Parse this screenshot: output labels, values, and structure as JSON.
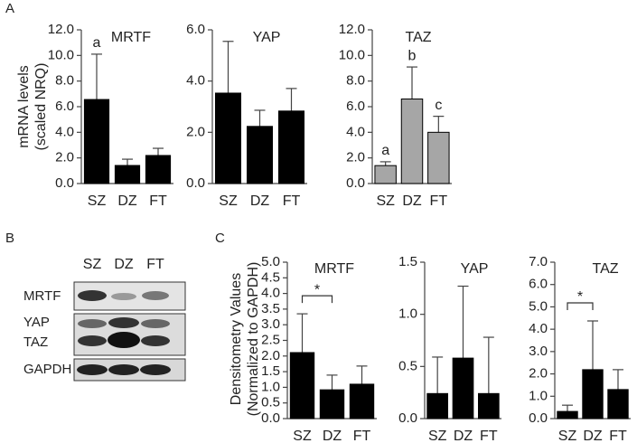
{
  "panels": [
    "A",
    "B",
    "C"
  ],
  "blot": {
    "lanes": [
      "SZ",
      "DZ",
      "FT"
    ],
    "rows": [
      "MRTF",
      "YAP",
      "TAZ",
      "GAPDH"
    ]
  },
  "chart_data": [
    {
      "type": "bar",
      "title": "MRTF",
      "ylabel": [
        "mRNA levels",
        "(scaled NRQ)"
      ],
      "categories": [
        "SZ",
        "DZ",
        "FT"
      ],
      "values": [
        6.56,
        1.41,
        2.19
      ],
      "errors": [
        3.54,
        0.49,
        0.56
      ],
      "annotations": [
        "a",
        null,
        null
      ],
      "color": "#000000",
      "ylim": [
        0,
        12
      ],
      "yticks": [
        {
          "value": 0,
          "label": "0.0"
        },
        {
          "value": 2,
          "label": "2.0"
        },
        {
          "value": 4,
          "label": "4.0"
        },
        {
          "value": 6,
          "label": "6.0"
        },
        {
          "value": 8,
          "label": "8.0"
        },
        {
          "value": 10,
          "label": "10.0"
        },
        {
          "value": 12,
          "label": "12.0"
        }
      ]
    },
    {
      "type": "bar",
      "title": "YAP",
      "categories": [
        "SZ",
        "DZ",
        "FT"
      ],
      "values": [
        3.53,
        2.23,
        2.83
      ],
      "errors": [
        2.02,
        0.63,
        0.88
      ],
      "color": "#000000",
      "ylim": [
        0,
        6
      ],
      "yticks": [
        {
          "value": 0,
          "label": "0.0"
        },
        {
          "value": 2,
          "label": "2.0"
        },
        {
          "value": 4,
          "label": "4.0"
        },
        {
          "value": 6,
          "label": "6.0"
        }
      ]
    },
    {
      "type": "bar",
      "title": "TAZ",
      "categories": [
        "SZ",
        "DZ",
        "FT"
      ],
      "values": [
        1.4,
        6.6,
        4.0
      ],
      "errors": [
        0.3,
        2.5,
        1.25
      ],
      "annotations": [
        "a",
        "b",
        "c"
      ],
      "color": "#a6a6a6",
      "ylim": [
        0,
        12
      ],
      "yticks": [
        {
          "value": 0,
          "label": "0.0"
        },
        {
          "value": 2,
          "label": "2.0"
        },
        {
          "value": 4,
          "label": "4.0"
        },
        {
          "value": 6,
          "label": "6.0"
        },
        {
          "value": 8,
          "label": "8.0"
        },
        {
          "value": 10,
          "label": "10.0"
        },
        {
          "value": 12,
          "label": "12.0"
        }
      ]
    },
    {
      "type": "bar",
      "title": "MRTF",
      "ylabel": [
        "Densitometry Values",
        "(Normalized to GAPDH)"
      ],
      "categories": [
        "SZ",
        "DZ",
        "FT"
      ],
      "values": [
        2.11,
        0.92,
        1.1
      ],
      "errors": [
        1.24,
        0.47,
        0.58
      ],
      "significance": {
        "label": "*",
        "pair": [
          "SZ",
          "DZ"
        ]
      },
      "color": "#000000",
      "ylim": [
        0,
        5
      ],
      "yticks": [
        {
          "value": 0,
          "label": "0.0"
        },
        {
          "value": 0.5,
          "label": "0.5"
        },
        {
          "value": 1,
          "label": "1.0"
        },
        {
          "value": 1.5,
          "label": "1.5"
        },
        {
          "value": 2,
          "label": "2.0"
        },
        {
          "value": 2.5,
          "label": "2.5"
        },
        {
          "value": 3,
          "label": "3.0"
        },
        {
          "value": 3.5,
          "label": "3.5"
        },
        {
          "value": 4,
          "label": "4.0"
        },
        {
          "value": 4.5,
          "label": "4.5"
        },
        {
          "value": 5,
          "label": "5.0"
        }
      ]
    },
    {
      "type": "bar",
      "title": "YAP",
      "categories": [
        "SZ",
        "DZ",
        "FT"
      ],
      "values": [
        0.24,
        0.58,
        0.24
      ],
      "errors": [
        0.35,
        0.69,
        0.54
      ],
      "color": "#000000",
      "ylim": [
        0,
        1.5
      ],
      "yticks": [
        {
          "value": 0,
          "label": "0.0"
        },
        {
          "value": 0.5,
          "label": "0.5"
        },
        {
          "value": 1,
          "label": "1.0"
        },
        {
          "value": 1.5,
          "label": "1.5"
        }
      ]
    },
    {
      "type": "bar",
      "title": "TAZ",
      "categories": [
        "SZ",
        "DZ",
        "FT"
      ],
      "values": [
        0.32,
        2.19,
        1.3
      ],
      "errors": [
        0.28,
        2.18,
        0.89
      ],
      "significance": {
        "label": "*",
        "pair": [
          "SZ",
          "DZ"
        ]
      },
      "color": "#000000",
      "ylim": [
        0,
        7
      ],
      "yticks": [
        {
          "value": 0,
          "label": "0.0"
        },
        {
          "value": 1,
          "label": "1.0"
        },
        {
          "value": 2,
          "label": "2.0"
        },
        {
          "value": 3,
          "label": "3.0"
        },
        {
          "value": 4,
          "label": "4.0"
        },
        {
          "value": 5,
          "label": "5.0"
        },
        {
          "value": 6,
          "label": "6.0"
        },
        {
          "value": 7,
          "label": "7.0"
        }
      ]
    }
  ]
}
